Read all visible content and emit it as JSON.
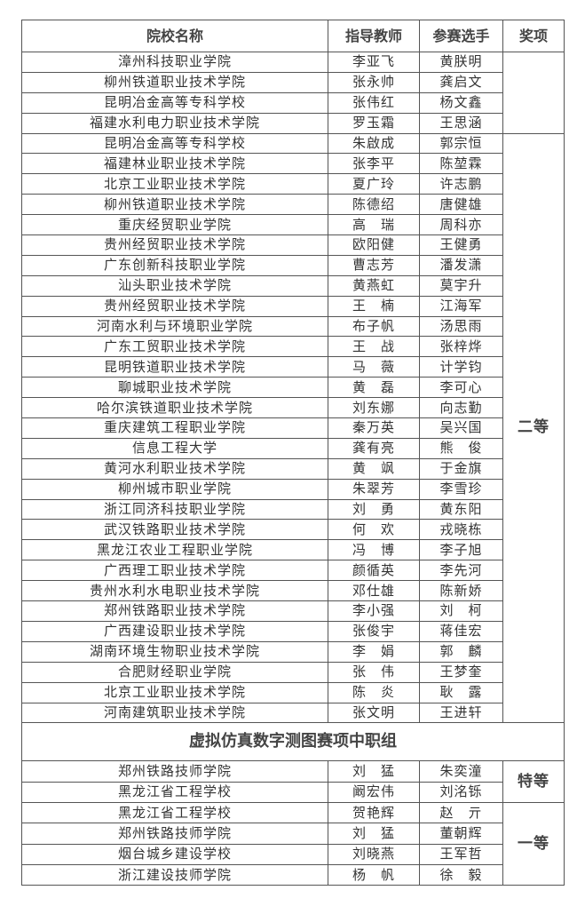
{
  "headers": {
    "school": "院校名称",
    "teacher": "指导教师",
    "student": "参赛选手",
    "award": "奖项"
  },
  "group1": {
    "award": "",
    "rows": [
      {
        "school": "漳州科技职业学院",
        "teacher": "李亚飞",
        "student": "黄朕明"
      },
      {
        "school": "柳州铁道职业技术学院",
        "teacher": "张永帅",
        "student": "龚启文"
      },
      {
        "school": "昆明冶金高等专科学校",
        "teacher": "张伟红",
        "student": "杨文鑫"
      },
      {
        "school": "福建水利电力职业技术学院",
        "teacher": "罗玉霜",
        "student": "王思涵"
      }
    ]
  },
  "group2": {
    "award": "二等",
    "rows": [
      {
        "school": "昆明冶金高等专科学校",
        "teacher": "朱啟成",
        "student": "郭宗恒"
      },
      {
        "school": "福建林业职业技术学院",
        "teacher": "张李平",
        "student": "陈堃霖"
      },
      {
        "school": "北京工业职业技术学院",
        "teacher": "夏广玲",
        "student": "许志鹏"
      },
      {
        "school": "柳州铁道职业技术学院",
        "teacher": "陈德绍",
        "student": "唐健雄"
      },
      {
        "school": "重庆经贸职业学院",
        "teacher": "高　瑞",
        "student": "周科亦"
      },
      {
        "school": "贵州经贸职业技术学院",
        "teacher": "欧阳健",
        "student": "王健勇"
      },
      {
        "school": "广东创新科技职业学院",
        "teacher": "曹志芳",
        "student": "潘发潇"
      },
      {
        "school": "汕头职业技术学院",
        "teacher": "黄燕虹",
        "student": "莫宇升"
      },
      {
        "school": "贵州经贸职业技术学院",
        "teacher": "王　楠",
        "student": "江海军"
      },
      {
        "school": "河南水利与环境职业学院",
        "teacher": "布子帆",
        "student": "汤思雨"
      },
      {
        "school": "广东工贸职业技术学院",
        "teacher": "王　战",
        "student": "张梓烨"
      },
      {
        "school": "昆明铁道职业技术学院",
        "teacher": "马　薇",
        "student": "计学钧"
      },
      {
        "school": "聊城职业技术学院",
        "teacher": "黄　磊",
        "student": "李可心"
      },
      {
        "school": "哈尔滨铁道职业技术学院",
        "teacher": "刘东娜",
        "student": "向志勤"
      },
      {
        "school": "重庆建筑工程职业学院",
        "teacher": "秦万英",
        "student": "吴兴国"
      },
      {
        "school": "信息工程大学",
        "teacher": "龚有亮",
        "student": "熊　俊"
      },
      {
        "school": "黄河水利职业技术学院",
        "teacher": "黄　飒",
        "student": "于金旗"
      },
      {
        "school": "柳州城市职业学院",
        "teacher": "朱翠芳",
        "student": "李雪珍"
      },
      {
        "school": "浙江同济科技职业学院",
        "teacher": "刘　勇",
        "student": "黄东阳"
      },
      {
        "school": "武汉铁路职业技术学院",
        "teacher": "何　欢",
        "student": "戎晓栋"
      },
      {
        "school": "黑龙江农业工程职业学院",
        "teacher": "冯　博",
        "student": "李子旭"
      },
      {
        "school": "广西理工职业技术学院",
        "teacher": "颜循英",
        "student": "李先河"
      },
      {
        "school": "贵州水利水电职业技术学院",
        "teacher": "邓仕雄",
        "student": "陈新娇"
      },
      {
        "school": "郑州铁路职业技术学院",
        "teacher": "李小强",
        "student": "刘　柯"
      },
      {
        "school": "广西建设职业技术学院",
        "teacher": "张俊宇",
        "student": "蒋佳宏"
      },
      {
        "school": "湖南环境生物职业技术学院",
        "teacher": "李　娟",
        "student": "郭　麟"
      },
      {
        "school": "合肥财经职业学院",
        "teacher": "张　伟",
        "student": "王梦奎"
      },
      {
        "school": "北京工业职业技术学院",
        "teacher": "陈　炎",
        "student": "耿　露"
      },
      {
        "school": "河南建筑职业技术学院",
        "teacher": "张文明",
        "student": "王进轩"
      }
    ]
  },
  "section_title": "虚拟仿真数字测图赛项中职组",
  "group3": {
    "award": "特等",
    "rows": [
      {
        "school": "郑州铁路技师学院",
        "teacher": "刘　猛",
        "student": "朱奕潼"
      },
      {
        "school": "黑龙江省工程学校",
        "teacher": "阚宏伟",
        "student": "刘洺铄"
      }
    ]
  },
  "group4": {
    "award": "一等",
    "rows": [
      {
        "school": "黑龙江省工程学校",
        "teacher": "贺艳辉",
        "student": "赵　亓"
      },
      {
        "school": "郑州铁路技师学院",
        "teacher": "刘　猛",
        "student": "董朝辉"
      },
      {
        "school": "烟台城乡建设学校",
        "teacher": "刘晓燕",
        "student": "王军哲"
      },
      {
        "school": "浙江建设技师学院",
        "teacher": "杨　帆",
        "student": "徐　毅"
      }
    ]
  }
}
